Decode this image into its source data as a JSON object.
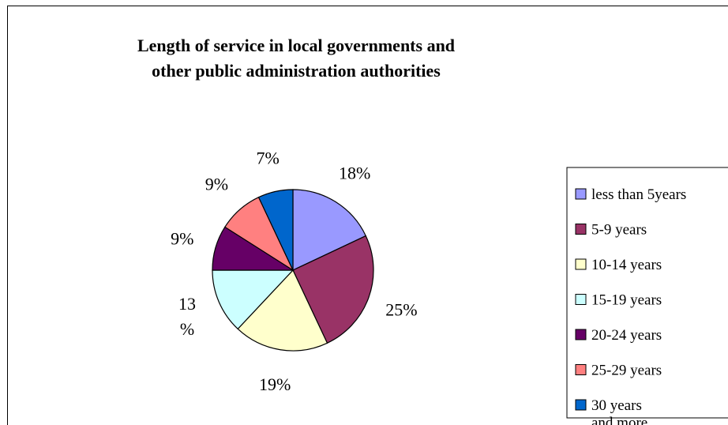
{
  "chart_data": {
    "type": "pie",
    "title": [
      "Length of service in local governments and",
      "other public administration authorities"
    ],
    "slices": [
      {
        "name": "less than 5years",
        "value": 18,
        "label": "18%",
        "color": "#9999ff"
      },
      {
        "name": "5-9 years",
        "value": 25,
        "label": "25%",
        "color": "#993366"
      },
      {
        "name": "10-14 years",
        "value": 19,
        "label": "19%",
        "color": "#ffffcc"
      },
      {
        "name": "15-19 years",
        "value": 13,
        "label": [
          "13",
          "%"
        ],
        "color": "#ccffff"
      },
      {
        "name": "20-24 years",
        "value": 9,
        "label": "9%",
        "color": "#660066"
      },
      {
        "name": "25-29 years",
        "value": 9,
        "label": "9%",
        "color": "#ff8080"
      },
      {
        "name": "30 years and more",
        "value": 7,
        "label": "7%",
        "color": "#0066cc"
      }
    ],
    "legend": {
      "placement": "right",
      "entries": [
        [
          "less than 5years"
        ],
        [
          "5-9 years"
        ],
        [
          "10-14 years"
        ],
        [
          "15-19 years"
        ],
        [
          "20-24 years"
        ],
        [
          "25-29 years"
        ],
        [
          "30 years",
          "and more"
        ]
      ]
    }
  }
}
